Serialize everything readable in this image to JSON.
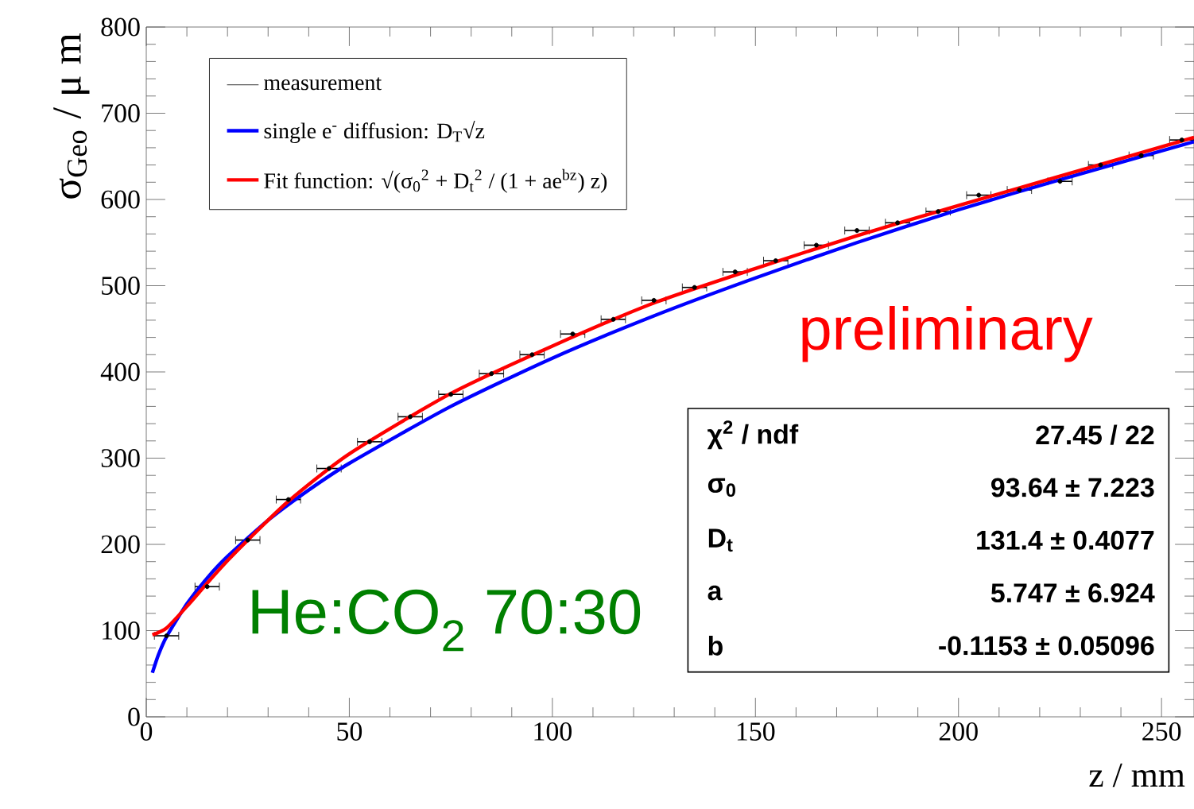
{
  "chart_data": {
    "type": "line",
    "xlabel": "z / mm",
    "ylabel": "σ$_{Geo}$ / μ m",
    "xlim": [
      0,
      258
    ],
    "ylim": [
      0,
      800
    ],
    "xticks": [
      0,
      50,
      100,
      150,
      200,
      250
    ],
    "yticks": [
      0,
      100,
      200,
      300,
      400,
      500,
      600,
      700,
      800
    ],
    "legend": "top left",
    "annotations": [
      "preliminary",
      "He:CO$_{2}$ 70:30",
      "χ$^{2}$ / ndf",
      "27.45 / 22",
      "σ$_{0}$",
      "93.64 ± 7.223",
      "D$_{t}$",
      "131.4 ± 0.4077",
      "a",
      "5.747 ± 6.924",
      "b",
      "-0.1153 ± 0.05096"
    ],
    "series": [
      {
        "name": "measurement",
        "type": "scatter",
        "color": "#000000",
        "marker": "circle",
        "x": [
          5,
          15,
          25,
          35,
          45,
          55,
          65,
          75,
          85,
          95,
          105,
          115,
          125,
          135,
          145,
          155,
          165,
          175,
          185,
          195,
          205,
          215,
          225,
          235,
          245,
          255
        ],
        "values": [
          94,
          151,
          205,
          252,
          288,
          319,
          348,
          374,
          398,
          420,
          444,
          461,
          483,
          498,
          516,
          529,
          547,
          564,
          573,
          586,
          605,
          611,
          621,
          640,
          651,
          669
        ],
        "xerrors": [
          3,
          3,
          3,
          3,
          3,
          3,
          3,
          3,
          3,
          3,
          3,
          3,
          3,
          3,
          3,
          3,
          3,
          3,
          3,
          3,
          3,
          3,
          3,
          3,
          3,
          3
        ]
      },
      {
        "name": "single e$^{-}$ diffusion: D$_{T}$√z",
        "color": "#0000ff",
        "x": [
          1.5,
          3,
          5,
          10,
          15,
          20,
          30,
          40,
          50,
          75,
          100,
          125,
          150,
          175,
          200,
          225,
          258
        ],
        "values": [
          51,
          72,
          93,
          131,
          161,
          186,
          228,
          263,
          294,
          360,
          416,
          465,
          509,
          550,
          588,
          623,
          667
        ]
      },
      {
        "name": "Fit function: √(σ$_{0}$$^{2}$ + D$_{t}$$^{2}$ / (1 + ae$^{bz}$) z)",
        "color": "#ff0000",
        "x": [
          1.5,
          5,
          10,
          15,
          20,
          25,
          35,
          50,
          75,
          100,
          125,
          150,
          175,
          200,
          225,
          258
        ],
        "values": [
          95,
          103,
          128,
          155,
          181,
          205,
          250,
          305,
          375,
          430,
          480,
          520,
          558,
          593,
          627,
          672
        ]
      }
    ]
  }
}
